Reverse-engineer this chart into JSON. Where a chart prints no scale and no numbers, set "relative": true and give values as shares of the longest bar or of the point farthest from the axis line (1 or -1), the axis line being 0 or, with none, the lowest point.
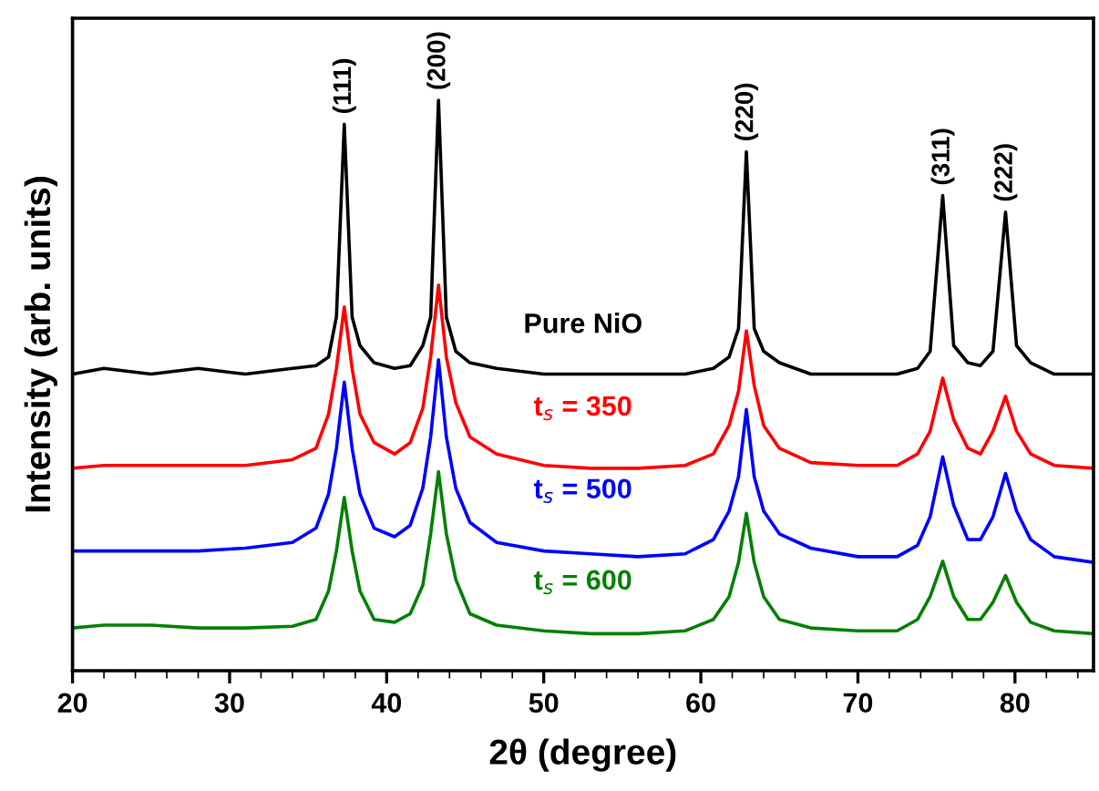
{
  "chart_data": {
    "type": "line",
    "relative": true,
    "xlabel": "2θ (degree)",
    "ylabel": "Intensity (arb. units)",
    "xlim": [
      20,
      85
    ],
    "xticks": [
      20,
      30,
      40,
      50,
      60,
      70,
      80
    ],
    "x": [
      20,
      22,
      25,
      28,
      31,
      34,
      35.5,
      36.3,
      36.8,
      37.3,
      37.8,
      38.3,
      39.2,
      40.5,
      41.5,
      42.3,
      42.8,
      43.3,
      43.8,
      44.4,
      45.3,
      47,
      50,
      53,
      56,
      59,
      60.8,
      61.8,
      62.4,
      62.9,
      63.4,
      64,
      65,
      67,
      70,
      72.5,
      73.8,
      74.6,
      75.4,
      76.1,
      77,
      77.8,
      78.6,
      79.4,
      80.1,
      81,
      82.5,
      85
    ],
    "series": [
      {
        "name": "Pure NiO",
        "color": "#000000",
        "values": [
          0.52,
          0.53,
          0.52,
          0.53,
          0.52,
          0.53,
          0.535,
          0.55,
          0.62,
          0.958,
          0.62,
          0.57,
          0.54,
          0.53,
          0.535,
          0.57,
          0.62,
          1.0,
          0.62,
          0.56,
          0.54,
          0.53,
          0.52,
          0.52,
          0.52,
          0.52,
          0.53,
          0.55,
          0.6,
          0.91,
          0.6,
          0.56,
          0.54,
          0.52,
          0.52,
          0.52,
          0.53,
          0.56,
          0.833,
          0.57,
          0.54,
          0.535,
          0.56,
          0.804,
          0.57,
          0.54,
          0.52,
          0.52
        ]
      },
      {
        "name": "t$_{s}$ = 350",
        "color": "#ff0000",
        "values": [
          0.355,
          0.36,
          0.36,
          0.36,
          0.36,
          0.37,
          0.39,
          0.45,
          0.53,
          0.638,
          0.53,
          0.45,
          0.4,
          0.38,
          0.4,
          0.46,
          0.55,
          0.676,
          0.55,
          0.47,
          0.41,
          0.38,
          0.36,
          0.355,
          0.355,
          0.36,
          0.38,
          0.43,
          0.49,
          0.596,
          0.5,
          0.43,
          0.39,
          0.365,
          0.36,
          0.36,
          0.38,
          0.42,
          0.513,
          0.44,
          0.39,
          0.38,
          0.42,
          0.481,
          0.42,
          0.38,
          0.36,
          0.355
        ]
      },
      {
        "name": "t$_{s}$ = 500",
        "color": "#0000ff",
        "values": [
          0.21,
          0.21,
          0.21,
          0.21,
          0.215,
          0.225,
          0.25,
          0.31,
          0.39,
          0.506,
          0.39,
          0.31,
          0.25,
          0.235,
          0.255,
          0.32,
          0.41,
          0.545,
          0.41,
          0.32,
          0.26,
          0.225,
          0.21,
          0.205,
          0.2,
          0.205,
          0.23,
          0.28,
          0.34,
          0.458,
          0.34,
          0.28,
          0.24,
          0.215,
          0.2,
          0.2,
          0.22,
          0.27,
          0.375,
          0.29,
          0.23,
          0.23,
          0.27,
          0.346,
          0.28,
          0.23,
          0.2,
          0.19
        ]
      },
      {
        "name": "t$_{s}$ = 600",
        "color": "#008000",
        "values": [
          0.075,
          0.08,
          0.08,
          0.075,
          0.075,
          0.078,
          0.09,
          0.14,
          0.21,
          0.304,
          0.21,
          0.14,
          0.09,
          0.085,
          0.1,
          0.15,
          0.24,
          0.349,
          0.24,
          0.16,
          0.1,
          0.08,
          0.07,
          0.065,
          0.065,
          0.07,
          0.09,
          0.13,
          0.19,
          0.276,
          0.19,
          0.13,
          0.09,
          0.075,
          0.07,
          0.07,
          0.09,
          0.13,
          0.192,
          0.13,
          0.09,
          0.09,
          0.12,
          0.167,
          0.12,
          0.085,
          0.07,
          0.065
        ]
      }
    ],
    "annotations": [
      {
        "text": "(111)",
        "x": 37.3,
        "y": 0.958
      },
      {
        "text": "(200)",
        "x": 43.3,
        "y": 1.0
      },
      {
        "text": "(220)",
        "x": 62.9,
        "y": 0.91
      },
      {
        "text": "(311)",
        "x": 75.4,
        "y": 0.833
      },
      {
        "text": "(222)",
        "x": 79.4,
        "y": 0.804
      }
    ]
  }
}
